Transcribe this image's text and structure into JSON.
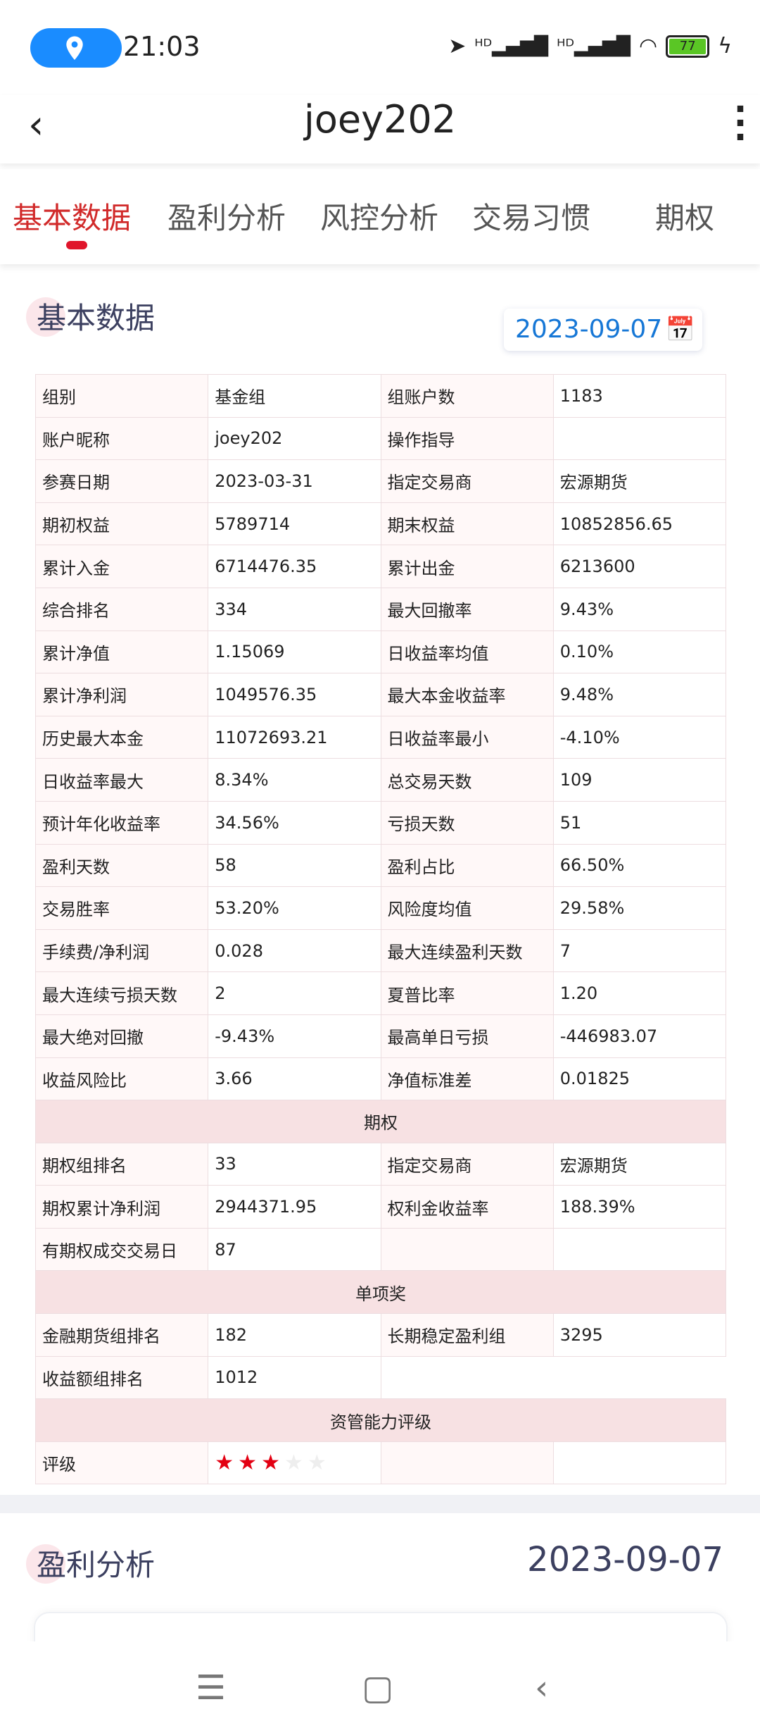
{
  "status": {
    "time": "21:03",
    "battery": "77",
    "icons": [
      "location-pill-icon",
      "navigation-icon",
      "signal-hd-icon",
      "signal-hd-icon",
      "wifi-icon",
      "battery-icon",
      "charging-icon"
    ]
  },
  "header": {
    "title": "joey202"
  },
  "tabs": [
    {
      "label": "基本数据",
      "active": true
    },
    {
      "label": "盈利分析"
    },
    {
      "label": "风控分析"
    },
    {
      "label": "交易习惯"
    },
    {
      "label": "期权"
    }
  ],
  "basic": {
    "title": "基本数据",
    "date": "2023-09-07",
    "rows": [
      [
        "组别",
        "基金组",
        "组账户数",
        "1183"
      ],
      [
        "账户昵称",
        "joey202",
        "操作指导",
        ""
      ],
      [
        "参赛日期",
        "2023-03-31",
        "指定交易商",
        "宏源期货"
      ],
      [
        "期初权益",
        "5789714",
        "期末权益",
        "10852856.65"
      ],
      [
        "累计入金",
        "6714476.35",
        "累计出金",
        "6213600"
      ],
      [
        "综合排名",
        "334",
        "最大回撤率",
        "9.43%"
      ],
      [
        "累计净值",
        "1.15069",
        "日收益率均值",
        "0.10%"
      ],
      [
        "累计净利润",
        "1049576.35",
        "最大本金收益率",
        "9.48%"
      ],
      [
        "历史最大本金",
        "11072693.21",
        "日收益率最小",
        "-4.10%"
      ],
      [
        "日收益率最大",
        "8.34%",
        "总交易天数",
        "109"
      ],
      [
        "预计年化收益率",
        "34.56%",
        "亏损天数",
        "51"
      ],
      [
        "盈利天数",
        "58",
        "盈利占比",
        "66.50%"
      ],
      [
        "交易胜率",
        "53.20%",
        "风险度均值",
        "29.58%"
      ],
      [
        "手续费/净利润",
        "0.028",
        "最大连续盈利天数",
        "7"
      ],
      [
        "最大连续亏损天数",
        "2",
        "夏普比率",
        "1.20"
      ],
      [
        "最大绝对回撤",
        "-9.43%",
        "最高单日亏损",
        "-446983.07"
      ],
      [
        "收益风险比",
        "3.66",
        "净值标准差",
        "0.01825"
      ]
    ],
    "options_header": "期权",
    "options_rows": [
      [
        "期权组排名",
        "33",
        "指定交易商",
        "宏源期货"
      ],
      [
        "期权累计净利润",
        "2944371.95",
        "权利金收益率",
        "188.39%"
      ],
      [
        "有期权成交交易日",
        "87",
        "",
        ""
      ]
    ],
    "awards_header": "单项奖",
    "awards_rows": [
      [
        "金融期货组排名",
        "182",
        "长期稳定盈利组",
        "3295"
      ],
      [
        "收益额组排名",
        "1012"
      ]
    ],
    "rating_header": "资管能力评级",
    "rating_label": "评级",
    "rating_stars": 3,
    "rating_max": 5,
    "star_color": "#e30012"
  },
  "profit": {
    "title": "盈利分析",
    "date": "2023-09-07"
  },
  "nav": [
    "menu-icon",
    "home-icon",
    "back-icon"
  ]
}
